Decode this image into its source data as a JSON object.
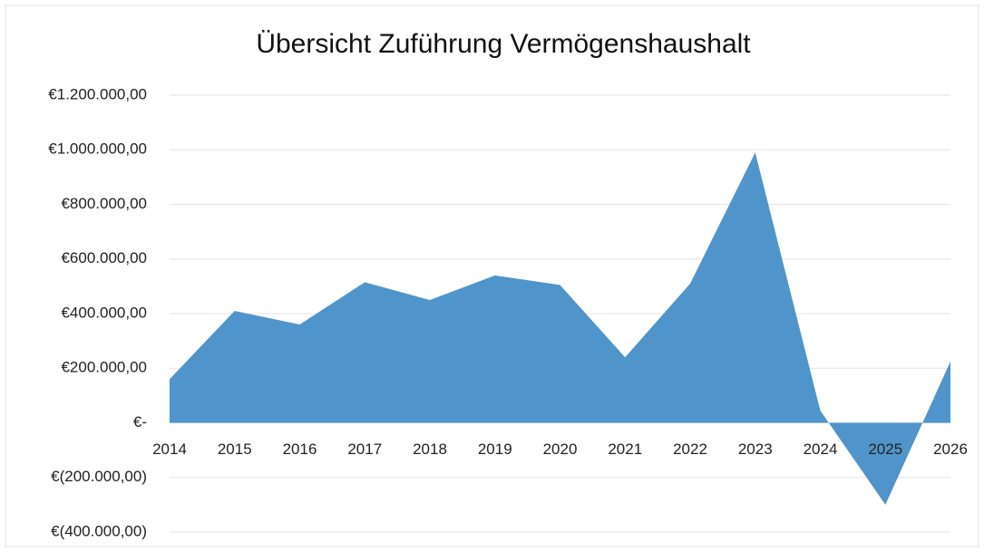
{
  "chart_data": {
    "type": "area",
    "title": "Übersicht Zuführung Vermögenshaushalt",
    "categories": [
      "2014",
      "2015",
      "2016",
      "2017",
      "2018",
      "2019",
      "2020",
      "2021",
      "2022",
      "2023",
      "2024",
      "2025",
      "2026"
    ],
    "series": [
      {
        "name": "Zuführung Vermögenshaushalt",
        "color": "#4f95cb",
        "values": [
          160000,
          410000,
          360000,
          515000,
          450000,
          540000,
          505000,
          240000,
          510000,
          990000,
          45000,
          -300000,
          225000
        ]
      }
    ],
    "ylim": [
      -400000,
      1200000
    ],
    "yticks": [
      {
        "value": -400000,
        "label": "€(400.000,00)"
      },
      {
        "value": -200000,
        "label": "€(200.000,00)"
      },
      {
        "value": 0,
        "label": "€-"
      },
      {
        "value": 200000,
        "label": "€200.000,00"
      },
      {
        "value": 400000,
        "label": "€400.000,00"
      },
      {
        "value": 600000,
        "label": "€600.000,00"
      },
      {
        "value": 800000,
        "label": "€800.000,00"
      },
      {
        "value": 1000000,
        "label": "€1.000.000,00"
      },
      {
        "value": 1200000,
        "label": "€1.200.000,00"
      }
    ],
    "grid": true
  }
}
